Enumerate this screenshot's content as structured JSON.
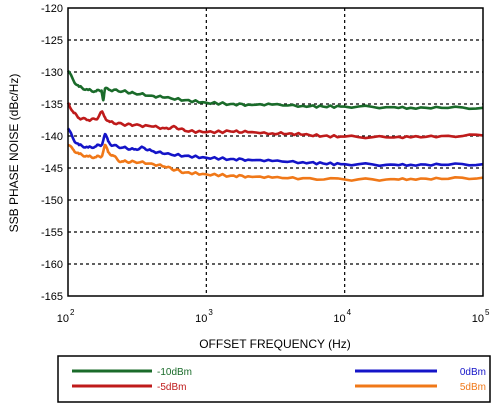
{
  "chart_data": {
    "type": "line",
    "title": "",
    "xlabel": "OFFSET FREQUENCY (Hz)",
    "ylabel": "SSB PHASE NOISE (dBc/Hz)",
    "x_scale": "log",
    "xlim": [
      100,
      100000
    ],
    "ylim": [
      -165,
      -120
    ],
    "x_ticks": [
      {
        "value": 100,
        "base": "10",
        "exp": "2"
      },
      {
        "value": 1000,
        "base": "10",
        "exp": "3"
      },
      {
        "value": 10000,
        "base": "10",
        "exp": "4"
      },
      {
        "value": 100000,
        "base": "10",
        "exp": "5"
      }
    ],
    "y_ticks": [
      -120,
      -125,
      -130,
      -135,
      -140,
      -145,
      -150,
      -155,
      -160,
      -165
    ],
    "grid": true,
    "legend_position": "below",
    "series": [
      {
        "name": "-10dBm",
        "color": "#1a6b2a",
        "points": [
          [
            100,
            -129.8
          ],
          [
            110,
            -131.4
          ],
          [
            120,
            -132.3
          ],
          [
            140,
            -132.8
          ],
          [
            160,
            -133.0
          ],
          [
            175,
            -132.9
          ],
          [
            180,
            -134.4
          ],
          [
            185,
            -132.6
          ],
          [
            200,
            -132.8
          ],
          [
            250,
            -133.0
          ],
          [
            300,
            -133.3
          ],
          [
            400,
            -133.7
          ],
          [
            500,
            -134.0
          ],
          [
            700,
            -134.4
          ],
          [
            1000,
            -134.8
          ],
          [
            1500,
            -135.0
          ],
          [
            2000,
            -135.1
          ],
          [
            3000,
            -135.1
          ],
          [
            5000,
            -135.3
          ],
          [
            7000,
            -135.4
          ],
          [
            10000,
            -135.4
          ],
          [
            20000,
            -135.5
          ],
          [
            30000,
            -135.6
          ],
          [
            50000,
            -135.6
          ],
          [
            100000,
            -135.6
          ]
        ]
      },
      {
        "name": "-5dBm",
        "color": "#bf1b1b",
        "points": [
          [
            100,
            -134.8
          ],
          [
            110,
            -136.4
          ],
          [
            120,
            -137.2
          ],
          [
            140,
            -137.5
          ],
          [
            160,
            -137.4
          ],
          [
            175,
            -136.2
          ],
          [
            185,
            -137.1
          ],
          [
            200,
            -137.8
          ],
          [
            250,
            -138.2
          ],
          [
            300,
            -138.3
          ],
          [
            400,
            -138.5
          ],
          [
            500,
            -138.8
          ],
          [
            600,
            -138.6
          ],
          [
            700,
            -139.2
          ],
          [
            1000,
            -139.4
          ],
          [
            1500,
            -139.3
          ],
          [
            2000,
            -139.4
          ],
          [
            3000,
            -139.6
          ],
          [
            4000,
            -139.6
          ],
          [
            5000,
            -139.8
          ],
          [
            7000,
            -140.0
          ],
          [
            10000,
            -140.1
          ],
          [
            20000,
            -140.2
          ],
          [
            30000,
            -140.2
          ],
          [
            50000,
            -140.0
          ],
          [
            100000,
            -139.9
          ]
        ]
      },
      {
        "name": "0dBm",
        "color": "#1414c8",
        "points": [
          [
            100,
            -138.8
          ],
          [
            110,
            -140.6
          ],
          [
            120,
            -141.4
          ],
          [
            140,
            -141.8
          ],
          [
            160,
            -141.6
          ],
          [
            175,
            -141.4
          ],
          [
            185,
            -139.7
          ],
          [
            195,
            -140.8
          ],
          [
            210,
            -141.5
          ],
          [
            250,
            -141.8
          ],
          [
            300,
            -142.1
          ],
          [
            350,
            -141.8
          ],
          [
            400,
            -142.3
          ],
          [
            500,
            -142.8
          ],
          [
            700,
            -143.1
          ],
          [
            1000,
            -143.4
          ],
          [
            1500,
            -143.6
          ],
          [
            2000,
            -143.7
          ],
          [
            3000,
            -143.9
          ],
          [
            5000,
            -144.1
          ],
          [
            7000,
            -144.3
          ],
          [
            10000,
            -144.4
          ],
          [
            20000,
            -144.5
          ],
          [
            30000,
            -144.5
          ],
          [
            50000,
            -144.5
          ],
          [
            100000,
            -144.4
          ]
        ]
      },
      {
        "name": "5dBm",
        "color": "#f07818",
        "points": [
          [
            100,
            -141.4
          ],
          [
            110,
            -142.2
          ],
          [
            120,
            -142.8
          ],
          [
            140,
            -143.2
          ],
          [
            160,
            -143.3
          ],
          [
            175,
            -143.2
          ],
          [
            185,
            -141.4
          ],
          [
            195,
            -142.5
          ],
          [
            210,
            -143.0
          ],
          [
            230,
            -143.8
          ],
          [
            250,
            -144.0
          ],
          [
            300,
            -144.0
          ],
          [
            400,
            -144.3
          ],
          [
            500,
            -144.8
          ],
          [
            600,
            -145.3
          ],
          [
            700,
            -145.7
          ],
          [
            1000,
            -146.0
          ],
          [
            1500,
            -146.2
          ],
          [
            2000,
            -146.3
          ],
          [
            3000,
            -146.5
          ],
          [
            5000,
            -146.6
          ],
          [
            10000,
            -146.8
          ],
          [
            20000,
            -146.8
          ],
          [
            30000,
            -146.7
          ],
          [
            50000,
            -146.7
          ],
          [
            100000,
            -146.5
          ]
        ]
      }
    ]
  }
}
